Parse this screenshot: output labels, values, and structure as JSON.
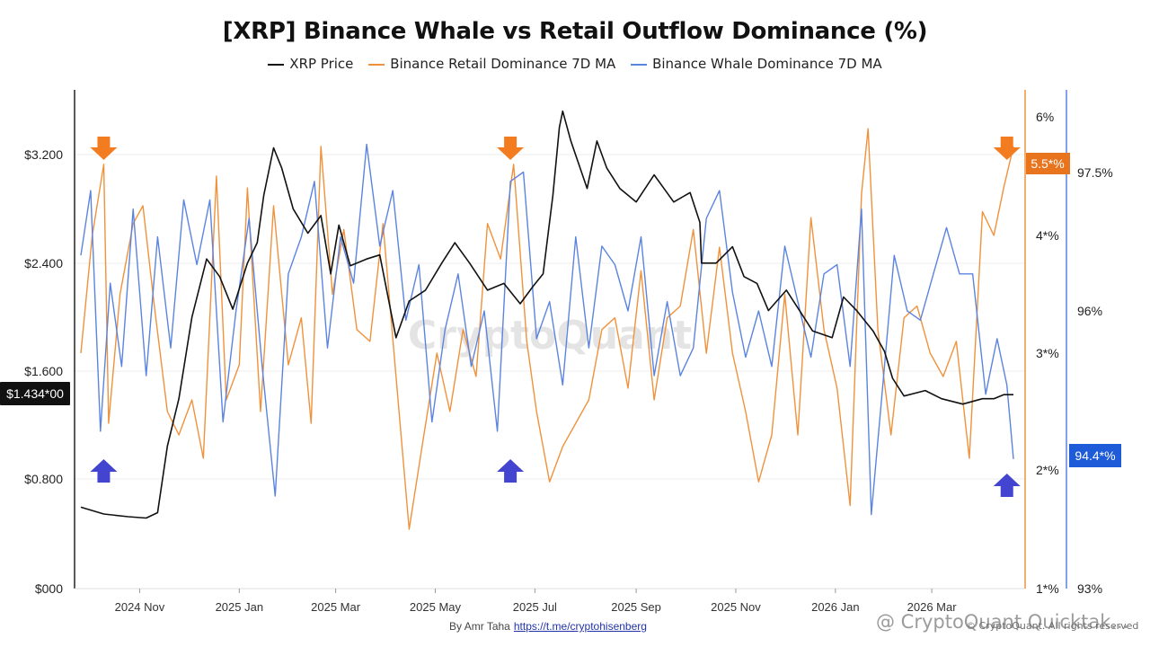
{
  "title": "[XRP] Binance Whale vs Retail Outflow Dominance (%)",
  "legend": [
    {
      "name": "XRP Price",
      "color": "#111111"
    },
    {
      "name": "Binance Retail Dominance 7D MA",
      "color": "#f0923c"
    },
    {
      "name": "Binance Whale Dominance 7D MA",
      "color": "#5b84e0"
    }
  ],
  "byline": {
    "text": "By Amr Taha",
    "link": "https://t.me/cryptohisenberg"
  },
  "watermark": "CryptoQuant",
  "overlay_watermark": "@ CryptoQuant Quicktak...",
  "overlay_small": "© CryptoQuant. All rights reserved",
  "colors": {
    "price": "#111111",
    "retail": "#f0923c",
    "whale": "#5b84e0",
    "arrow_orange": "#f47c20",
    "arrow_blue": "#4345d0",
    "retail_badge": "#e8741e",
    "whale_badge": "#1e5bd8"
  },
  "chart_data": {
    "type": "line",
    "title": "[XRP] Binance Whale vs Retail Outflow Dominance (%)",
    "x_ticks": [
      "2024 Nov",
      "2025 Jan",
      "2025 Mar",
      "2025 May",
      "2025 Jul",
      "2025 Sep",
      "2025 Nov",
      "2026 Jan",
      "2026 Mar"
    ],
    "x_range": [
      "2024-09-26",
      "2026-04-20"
    ],
    "left_axis": {
      "ticks": [
        "$000",
        "$0.800",
        "$1.600",
        "$2.400",
        "$3.200"
      ],
      "range": [
        0,
        3.2
      ],
      "current_badge": "$1.434*00"
    },
    "retail_axis": {
      "ticks": [
        "1*%",
        "2*%",
        "3*%",
        "4*%",
        "6%"
      ],
      "current_badge": "5.5*%"
    },
    "whale_axis": {
      "ticks": [
        "93%",
        "96%",
        "97.5%"
      ],
      "current_badge": "94.4*%"
    },
    "series": [
      {
        "name": "XRP Price",
        "axis": "left",
        "x": [
          "2024-09-26",
          "2024-10-10",
          "2024-10-25",
          "2024-11-05",
          "2024-11-12",
          "2024-11-18",
          "2024-11-25",
          "2024-12-03",
          "2024-12-12",
          "2024-12-20",
          "2024-12-28",
          "2025-01-06",
          "2025-01-12",
          "2025-01-16",
          "2025-01-22",
          "2025-01-27",
          "2025-02-03",
          "2025-02-12",
          "2025-02-20",
          "2025-02-26",
          "2025-03-03",
          "2025-03-10",
          "2025-03-20",
          "2025-03-28",
          "2025-04-07",
          "2025-04-15",
          "2025-04-25",
          "2025-05-05",
          "2025-05-13",
          "2025-05-22",
          "2025-06-02",
          "2025-06-12",
          "2025-06-22",
          "2025-06-30",
          "2025-07-06",
          "2025-07-12",
          "2025-07-16",
          "2025-07-18",
          "2025-07-23",
          "2025-08-02",
          "2025-08-08",
          "2025-08-14",
          "2025-08-22",
          "2025-09-01",
          "2025-09-12",
          "2025-09-18",
          "2025-09-24",
          "2025-10-04",
          "2025-10-10",
          "2025-10-11",
          "2025-10-20",
          "2025-10-30",
          "2025-11-06",
          "2025-11-14",
          "2025-11-21",
          "2025-12-02",
          "2025-12-10",
          "2025-12-18",
          "2025-12-30",
          "2026-01-06",
          "2026-01-14",
          "2026-01-24",
          "2026-01-31",
          "2026-02-05",
          "2026-02-12",
          "2026-02-25",
          "2026-03-07",
          "2026-03-20",
          "2026-04-01",
          "2026-04-08",
          "2026-04-14",
          "2026-04-20"
        ],
        "values": [
          0.6,
          0.55,
          0.53,
          0.52,
          0.56,
          1.05,
          1.4,
          2.0,
          2.43,
          2.3,
          2.06,
          2.4,
          2.55,
          2.9,
          3.25,
          3.1,
          2.8,
          2.62,
          2.75,
          2.32,
          2.68,
          2.38,
          2.43,
          2.46,
          1.85,
          2.12,
          2.2,
          2.4,
          2.55,
          2.4,
          2.2,
          2.25,
          2.1,
          2.23,
          2.32,
          2.9,
          3.4,
          3.52,
          3.3,
          2.95,
          3.3,
          3.1,
          2.95,
          2.85,
          3.05,
          2.95,
          2.85,
          2.92,
          2.7,
          2.4,
          2.4,
          2.52,
          2.3,
          2.25,
          2.05,
          2.2,
          2.05,
          1.9,
          1.85,
          2.15,
          2.05,
          1.9,
          1.75,
          1.55,
          1.42,
          1.46,
          1.4,
          1.36,
          1.4,
          1.4,
          1.43,
          1.43
        ]
      },
      {
        "name": "Binance Retail Dominance 7D MA",
        "axis": "retail",
        "x": [
          "2024-09-26",
          "2024-10-03",
          "2024-10-10",
          "2024-10-13",
          "2024-10-20",
          "2024-10-28",
          "2024-11-03",
          "2024-11-10",
          "2024-11-18",
          "2024-11-25",
          "2024-12-03",
          "2024-12-10",
          "2024-12-18",
          "2024-12-24",
          "2025-01-01",
          "2025-01-06",
          "2025-01-14",
          "2025-01-22",
          "2025-01-31",
          "2025-02-08",
          "2025-02-14",
          "2025-02-20",
          "2025-02-27",
          "2025-03-06",
          "2025-03-14",
          "2025-03-22",
          "2025-03-30",
          "2025-04-07",
          "2025-04-15",
          "2025-04-24",
          "2025-05-02",
          "2025-05-10",
          "2025-05-18",
          "2025-05-26",
          "2025-06-02",
          "2025-06-10",
          "2025-06-18",
          "2025-06-26",
          "2025-07-02",
          "2025-07-10",
          "2025-07-18",
          "2025-07-26",
          "2025-08-03",
          "2025-08-11",
          "2025-08-19",
          "2025-08-27",
          "2025-09-04",
          "2025-09-12",
          "2025-09-20",
          "2025-09-28",
          "2025-10-06",
          "2025-10-14",
          "2025-10-22",
          "2025-10-30",
          "2025-11-07",
          "2025-11-15",
          "2025-11-23",
          "2025-12-01",
          "2025-12-09",
          "2025-12-17",
          "2025-12-25",
          "2026-01-02",
          "2026-01-10",
          "2026-01-17",
          "2026-01-21",
          "2026-01-27",
          "2026-02-04",
          "2026-02-12",
          "2026-02-20",
          "2026-02-28",
          "2026-03-08",
          "2026-03-16",
          "2026-03-24",
          "2026-04-01",
          "2026-04-08",
          "2026-04-14",
          "2026-04-20"
        ],
        "values": [
          3.0,
          4.0,
          5.2,
          2.4,
          3.5,
          4.2,
          4.5,
          3.4,
          2.5,
          2.3,
          2.6,
          2.1,
          5.0,
          2.6,
          2.9,
          4.8,
          2.5,
          4.5,
          2.9,
          3.3,
          2.4,
          5.5,
          3.5,
          4.1,
          3.2,
          3.1,
          4.2,
          2.8,
          1.5,
          2.3,
          3.0,
          2.5,
          3.2,
          2.8,
          4.2,
          3.8,
          5.2,
          3.1,
          2.5,
          1.9,
          2.2,
          2.4,
          2.6,
          3.2,
          3.3,
          2.7,
          3.7,
          2.6,
          3.3,
          3.4,
          4.1,
          3.0,
          3.9,
          3.0,
          2.5,
          1.9,
          2.3,
          3.5,
          2.3,
          4.3,
          3.2,
          2.7,
          1.7,
          4.7,
          5.8,
          3.2,
          2.3,
          3.3,
          3.4,
          3.0,
          2.8,
          3.1,
          2.1,
          4.4,
          4.0,
          4.8,
          5.5
        ]
      },
      {
        "name": "Binance Whale Dominance 7D MA",
        "axis": "whale",
        "x": [
          "2024-09-26",
          "2024-10-02",
          "2024-10-08",
          "2024-10-14",
          "2024-10-21",
          "2024-10-28",
          "2024-11-05",
          "2024-11-12",
          "2024-11-20",
          "2024-11-28",
          "2024-12-06",
          "2024-12-14",
          "2024-12-22",
          "2024-12-30",
          "2025-01-07",
          "2025-01-15",
          "2025-01-23",
          "2025-01-31",
          "2025-02-08",
          "2025-02-16",
          "2025-02-24",
          "2025-03-04",
          "2025-03-12",
          "2025-03-20",
          "2025-03-28",
          "2025-04-05",
          "2025-04-13",
          "2025-04-21",
          "2025-04-29",
          "2025-05-07",
          "2025-05-15",
          "2025-05-23",
          "2025-05-31",
          "2025-06-08",
          "2025-06-16",
          "2025-06-24",
          "2025-07-02",
          "2025-07-10",
          "2025-07-18",
          "2025-07-26",
          "2025-08-03",
          "2025-08-11",
          "2025-08-19",
          "2025-08-27",
          "2025-09-04",
          "2025-09-12",
          "2025-09-20",
          "2025-09-28",
          "2025-10-06",
          "2025-10-14",
          "2025-10-22",
          "2025-10-30",
          "2025-11-07",
          "2025-11-15",
          "2025-11-23",
          "2025-12-01",
          "2025-12-09",
          "2025-12-17",
          "2025-12-25",
          "2026-01-02",
          "2026-01-10",
          "2026-01-17",
          "2026-01-23",
          "2026-01-29",
          "2026-02-06",
          "2026-02-14",
          "2026-02-22",
          "2026-03-02",
          "2026-03-10",
          "2026-03-18",
          "2026-03-26",
          "2026-04-03",
          "2026-04-10",
          "2026-04-16",
          "2026-04-20"
        ],
        "values": [
          96.6,
          97.3,
          94.7,
          96.3,
          95.4,
          97.1,
          95.3,
          96.8,
          95.6,
          97.2,
          96.5,
          97.2,
          94.8,
          96.0,
          97.0,
          95.4,
          94.0,
          96.4,
          96.8,
          97.4,
          95.6,
          96.8,
          96.3,
          97.8,
          96.7,
          97.3,
          95.9,
          96.5,
          94.8,
          95.8,
          96.4,
          95.4,
          96.0,
          94.7,
          97.4,
          97.5,
          95.7,
          96.1,
          95.2,
          96.8,
          95.6,
          96.7,
          96.5,
          96.0,
          96.8,
          95.3,
          96.1,
          95.3,
          95.6,
          97.0,
          97.3,
          96.2,
          95.5,
          96.0,
          95.4,
          96.7,
          96.1,
          95.5,
          96.4,
          96.5,
          95.4,
          97.1,
          93.8,
          95.0,
          96.6,
          96.0,
          95.9,
          96.4,
          96.9,
          96.4,
          96.4,
          95.1,
          95.7,
          95.2,
          94.4
        ]
      }
    ],
    "annotations": {
      "orange_down_arrows": [
        "2024-10-10",
        "2025-06-16",
        "2026-04-16"
      ],
      "blue_up_arrows": [
        "2024-10-10",
        "2025-06-16",
        "2026-04-16"
      ]
    }
  }
}
